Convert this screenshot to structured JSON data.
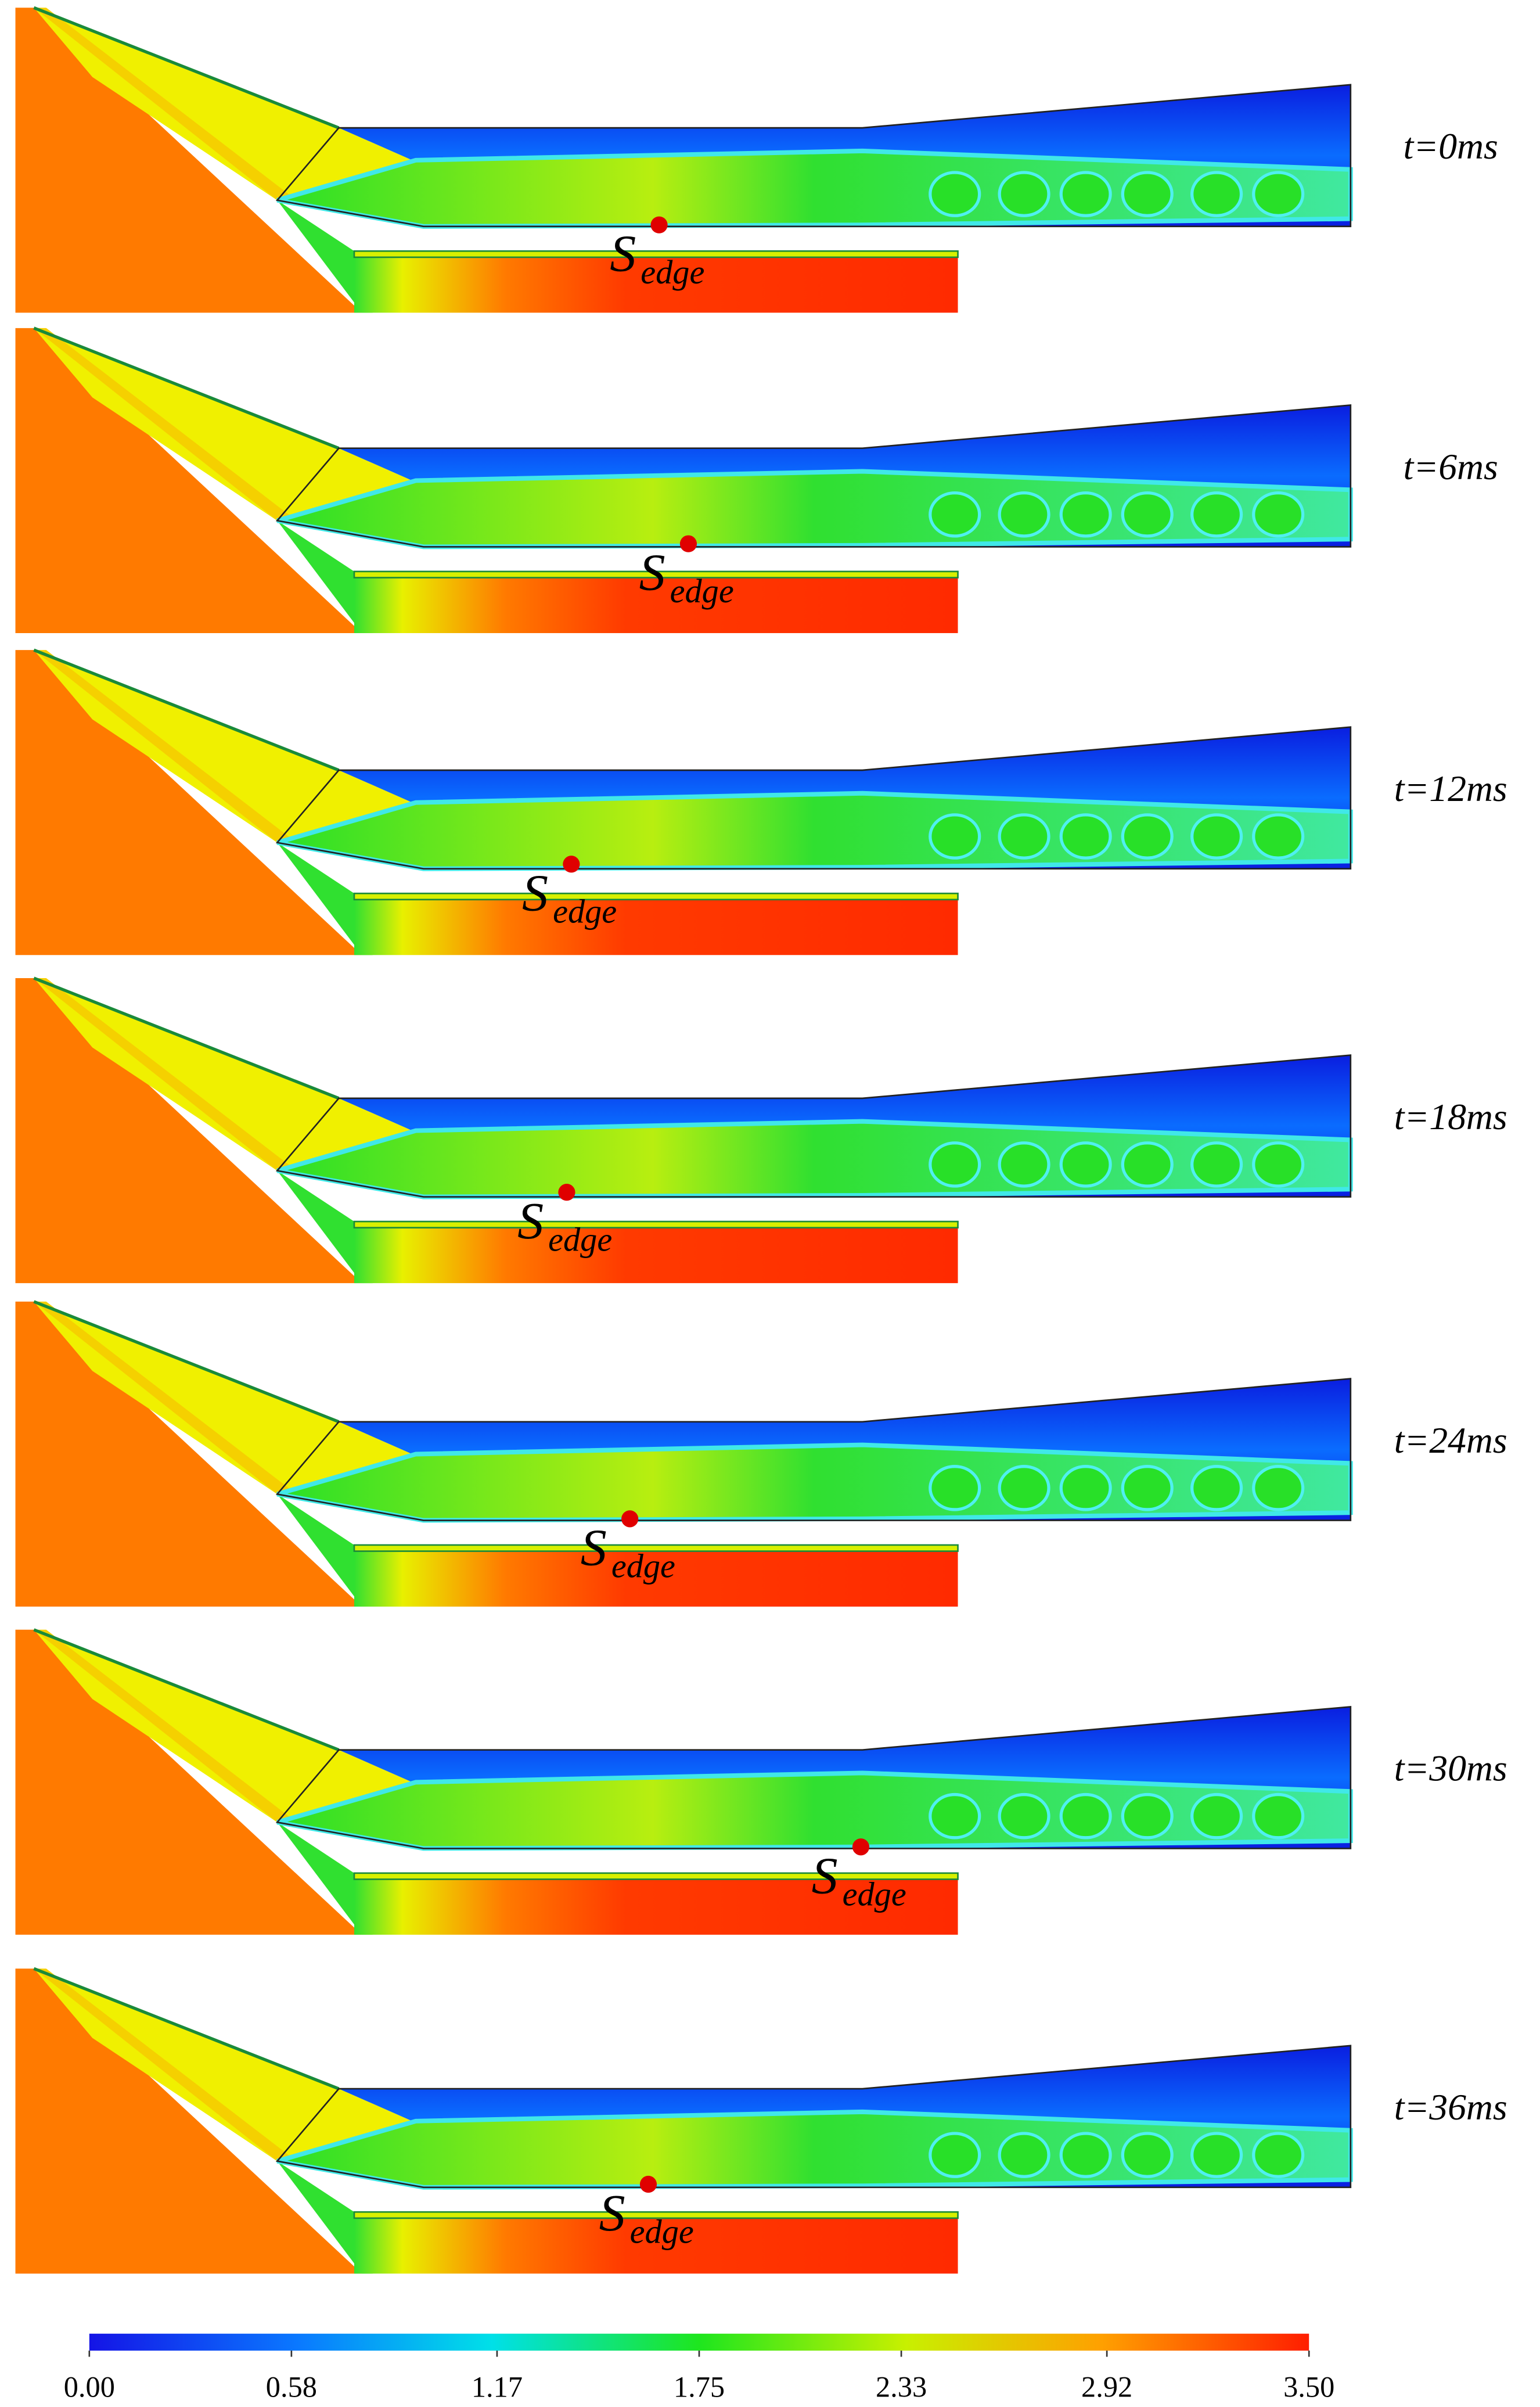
{
  "panels": [
    {
      "time": "t=0ms",
      "marker_label": "S",
      "marker_subscript": "edge"
    },
    {
      "time": "t=6ms",
      "marker_label": "S",
      "marker_subscript": "edge"
    },
    {
      "time": "t=12ms",
      "marker_label": "S",
      "marker_subscript": "edge"
    },
    {
      "time": "t=18ms",
      "marker_label": "S",
      "marker_subscript": "edge"
    },
    {
      "time": "t=24ms",
      "marker_label": "S",
      "marker_subscript": "edge"
    },
    {
      "time": "t=30ms",
      "marker_label": "S",
      "marker_subscript": "edge"
    },
    {
      "time": "t=36ms",
      "marker_label": "S",
      "marker_subscript": "edge"
    }
  ],
  "colorbar": {
    "range": [
      0,
      3.5
    ],
    "ticks": [
      {
        "value": 0,
        "label": "0.00"
      },
      {
        "value": 0.58,
        "label": "0.58"
      },
      {
        "value": 1.17,
        "label": "1.17"
      },
      {
        "value": 1.75,
        "label": "1.75"
      },
      {
        "value": 2.33,
        "label": "2.33"
      },
      {
        "value": 2.92,
        "label": "2.92"
      },
      {
        "value": 3.5,
        "label": "3.50"
      }
    ]
  }
}
